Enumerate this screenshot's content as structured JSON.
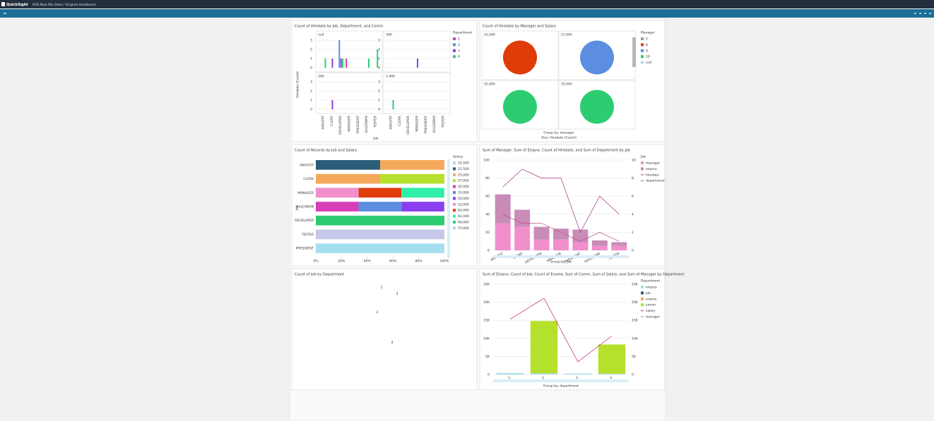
{
  "app": {
    "brand": "QuickSight",
    "breadcrumb": "RDS New Mix Data / Original dashboard"
  },
  "visuals": [
    {
      "type": "small-multiples-bar",
      "title": "Count of Hiredate by Job, Department, and Comm.",
      "y_label": "Hiredate (Count)",
      "x_label": "Job",
      "legend_title": "Department",
      "categories": [
        "ANALYST",
        "CLERK",
        "DEVELOPER",
        "MANAGER",
        "PRESIDENT",
        "SALESMAN",
        "TESTER"
      ],
      "ylim": [
        0,
        3
      ],
      "yticks": [
        0,
        1,
        2,
        3
      ],
      "grid": true,
      "series": [
        {
          "name": "1",
          "color": "#d63fa8"
        },
        {
          "name": "2",
          "color": "#5b8ee0"
        },
        {
          "name": "3",
          "color": "#8a3ff0"
        },
        {
          "name": "4",
          "color": "#2ecc71"
        }
      ],
      "panels": [
        {
          "label": "null",
          "values": [
            [
              null,
              null,
              null,
              1,
              null,
              null,
              null
            ],
            [
              null,
              null,
              3,
              null,
              null,
              null,
              null
            ],
            [
              null,
              1,
              1,
              null,
              null,
              null,
              null
            ],
            [
              1,
              null,
              1,
              null,
              null,
              1,
              2
            ]
          ]
        },
        {
          "label": "300",
          "values": [
            [
              null,
              null,
              null,
              null,
              null,
              null,
              null
            ],
            [
              null,
              null,
              null,
              null,
              null,
              null,
              null
            ],
            [
              null,
              null,
              null,
              1,
              null,
              null,
              null
            ],
            [
              null,
              null,
              null,
              null,
              null,
              null,
              null
            ]
          ]
        },
        {
          "label": "500",
          "values": [
            [
              null,
              null,
              null,
              null,
              null,
              null,
              null
            ],
            [
              null,
              null,
              null,
              null,
              null,
              null,
              null
            ],
            [
              null,
              1,
              null,
              null,
              null,
              null,
              null
            ],
            [
              null,
              null,
              null,
              null,
              null,
              null,
              null
            ]
          ]
        },
        {
          "label": "1,400",
          "values": [
            [
              null,
              null,
              null,
              null,
              null,
              null,
              null
            ],
            [
              null,
              null,
              null,
              null,
              null,
              null,
              null
            ],
            [
              null,
              null,
              null,
              null,
              null,
              null,
              null
            ],
            [
              1,
              null,
              null,
              null,
              null,
              null,
              null
            ]
          ]
        }
      ]
    },
    {
      "type": "bubble-grid",
      "title": "Count of Hiredate by Manager and Salary",
      "legend_title": "Manager",
      "group_label": "Group by: manager",
      "size_label": "Size: Hiredate (Count)",
      "series": [
        {
          "name": "2",
          "color": "#9e9e9e"
        },
        {
          "name": "8",
          "color": "#e03c0a"
        },
        {
          "name": "9",
          "color": "#5b8ee0"
        },
        {
          "name": "10",
          "color": "#2ecc71"
        },
        {
          "name": "null",
          "color": "#a6dff0"
        }
      ],
      "panels": [
        {
          "label": "22,500",
          "value": 1,
          "color": "#e03c0a"
        },
        {
          "label": "27,000",
          "value": 1,
          "color": "#5b8ee0"
        },
        {
          "label": "55,000",
          "value": 1,
          "color": "#2ecc71"
        },
        {
          "label": "33,000",
          "value": 1,
          "color": "#2ecc71"
        }
      ]
    },
    {
      "type": "hbar-stacked",
      "title": "Count of Records by Job and Salary",
      "y_label": "Job",
      "legend_title": "Salary",
      "categories": [
        "ANALYST",
        "CLERK",
        "MANAGER",
        "SALESMAN",
        "DEVELOPER",
        "TESTER",
        "PRESIDENT"
      ],
      "xlim": [
        0,
        100
      ],
      "xticks": [
        {
          "value": 0,
          "label": "0%"
        },
        {
          "value": 20,
          "label": "20%"
        },
        {
          "value": 40,
          "label": "40%"
        },
        {
          "value": 60,
          "label": "60%"
        },
        {
          "value": 80,
          "label": "80%"
        },
        {
          "value": 100,
          "label": "100%"
        }
      ],
      "series": [
        {
          "name": "16,500",
          "color": "#a6dff0",
          "values": [
            null,
            null,
            null,
            null,
            null,
            null,
            100
          ]
        },
        {
          "name": "22,500",
          "color": "#2a5d78",
          "values": [
            50,
            null,
            null,
            null,
            null,
            null,
            null
          ]
        },
        {
          "name": "25,000",
          "color": "#f4a95a",
          "values": [
            50,
            50,
            null,
            null,
            null,
            null,
            null
          ]
        },
        {
          "name": "27,000",
          "color": "#b5e02c",
          "values": [
            null,
            50,
            null,
            null,
            null,
            null,
            null
          ]
        },
        {
          "name": "30,000",
          "color": "#d63fb8",
          "values": [
            null,
            null,
            null,
            33.3,
            null,
            null,
            null
          ]
        },
        {
          "name": "33,000",
          "color": "#5b8ee0",
          "values": [
            null,
            null,
            null,
            33.3,
            null,
            null,
            null
          ]
        },
        {
          "name": "50,000",
          "color": "#8a3ff0",
          "values": [
            null,
            null,
            null,
            33.3,
            null,
            null,
            null
          ]
        },
        {
          "name": "55,000",
          "color": "#f08fcc",
          "values": [
            null,
            null,
            33.3,
            null,
            null,
            null,
            null
          ]
        },
        {
          "name": "60,000",
          "color": "#e03c0a",
          "values": [
            null,
            null,
            33.3,
            null,
            null,
            null,
            null
          ]
        },
        {
          "name": "64,000",
          "color": "#2ef0a8",
          "values": [
            null,
            null,
            33.3,
            null,
            null,
            null,
            null
          ]
        },
        {
          "name": "66,000",
          "color": "#2ecc71",
          "values": [
            null,
            null,
            null,
            null,
            100,
            null,
            null
          ]
        },
        {
          "name": "70,000",
          "color": "#c5c8e8",
          "values": [
            null,
            null,
            null,
            null,
            null,
            100,
            null
          ]
        }
      ]
    },
    {
      "type": "combo",
      "title": "Sum of Manager, Sum of Empno, Count of Hiredate, and Sum of Department by Job",
      "legend_title": "Job",
      "group_label": "Group by: job",
      "categories": [
        "ANALYST",
        "CLERK",
        "DEVELOPER",
        "MANAGER",
        "PRESIDENT",
        "SALESMAN",
        "TESTER"
      ],
      "ylim": [
        0,
        100
      ],
      "yticks": [
        0,
        20,
        40,
        60,
        80,
        100
      ],
      "y2lim": [
        0,
        10
      ],
      "y2ticks": [
        0,
        2,
        4,
        6,
        8,
        10
      ],
      "grid": true,
      "series": [
        {
          "name": "manager",
          "kind": "bar",
          "color": "#f08fcc",
          "values": [
            30,
            26,
            12,
            12,
            9,
            5,
            5
          ]
        },
        {
          "name": "empno",
          "kind": "bar",
          "color": "#c98bb8",
          "values": [
            32,
            19,
            14,
            12,
            14,
            6,
            4
          ]
        },
        {
          "name": "hiredate",
          "kind": "line",
          "axis": "y2",
          "color": "#a2337f",
          "values": [
            7,
            9,
            8,
            8,
            2,
            6,
            4
          ]
        },
        {
          "name": "department",
          "kind": "line",
          "axis": "y2",
          "color": "#c04a8a",
          "values": [
            4,
            3,
            3,
            2,
            1,
            2,
            1
          ]
        }
      ]
    },
    {
      "type": "word-cloud",
      "title": "Count of Job by Department",
      "categories": [
        "1",
        "2",
        "3",
        "4"
      ],
      "values": [
        1,
        4,
        3,
        6
      ]
    },
    {
      "type": "combo",
      "title": "Sum of Empno, Count of Job, Count of Ename, Sum of Comm, Sum of Salary, and Sum of Manager by Department",
      "legend_title": "Department",
      "group_label": "Group by: department",
      "categories": [
        "1",
        "2",
        "3",
        "4"
      ],
      "ylim": [
        0,
        25000
      ],
      "yticks": [
        0,
        {
          "value": 5000,
          "label": "5K"
        },
        {
          "value": 10000,
          "label": "10K"
        },
        {
          "value": 15000,
          "label": "15K"
        },
        {
          "value": 20000,
          "label": "20K"
        },
        {
          "value": 25000,
          "label": "25K"
        }
      ],
      "y2lim": [
        0,
        25000
      ],
      "y2ticks": [
        0,
        {
          "value": 5000,
          "label": "5K"
        },
        {
          "value": 10000,
          "label": "10K"
        },
        {
          "value": 15000,
          "label": "15K"
        },
        {
          "value": 20000,
          "label": "20K"
        },
        {
          "value": 25000,
          "label": "25K"
        }
      ],
      "grid": true,
      "series": [
        {
          "name": "empno",
          "kind": "bar",
          "color": "#a6dff0",
          "values": [
            400,
            300,
            250,
            200
          ]
        },
        {
          "name": "job",
          "kind": "bar",
          "color": "#2a5d78",
          "values": [
            3,
            5,
            6,
            2
          ]
        },
        {
          "name": "ename",
          "kind": "bar",
          "color": "#f4a95a",
          "values": [
            3,
            5,
            6,
            2
          ]
        },
        {
          "name": "comm",
          "kind": "bar",
          "color": "#b5e02c",
          "values": [
            null,
            14500,
            null,
            8100
          ]
        },
        {
          "name": "salary",
          "kind": "line",
          "axis": "y2",
          "color": "#c0237f",
          "values": [
            15300,
            21100,
            3500,
            10700
          ]
        },
        {
          "name": "manager",
          "kind": "line",
          "axis": "y2",
          "color": "#8c8c8c",
          "values": [
            null,
            null,
            null,
            null
          ]
        }
      ]
    }
  ]
}
